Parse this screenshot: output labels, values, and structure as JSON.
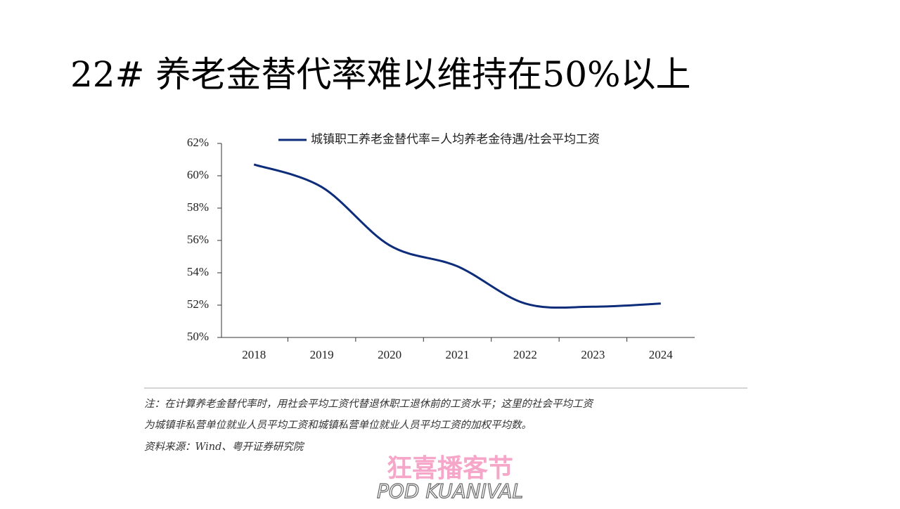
{
  "chart_data": {
    "type": "line",
    "title": "22# 养老金替代率难以维持在50%以上",
    "categories": [
      "2018",
      "2019",
      "2020",
      "2021",
      "2022",
      "2023",
      "2024"
    ],
    "series": [
      {
        "name": "城镇职工养老金替代率=人均养老金待遇/社会平均工资",
        "color": "#0d2d7a",
        "values": [
          60.7,
          59.3,
          55.7,
          54.4,
          52.1,
          51.9,
          52.1
        ]
      }
    ],
    "ylim": [
      50,
      62
    ],
    "yticks": [
      {
        "value": 50,
        "label": "50%"
      },
      {
        "value": 52,
        "label": "52%"
      },
      {
        "value": 54,
        "label": "54%"
      },
      {
        "value": 56,
        "label": "56%"
      },
      {
        "value": 58,
        "label": "58%"
      },
      {
        "value": 60,
        "label": "60%"
      },
      {
        "value": 62,
        "label": "62%"
      }
    ],
    "legend": "top",
    "notes": [
      "注：在计算养老金替代率时，用社会平均工资代替退休职工退休前的工资水平；这里的社会平均工资",
      "为城镇非私营单位就业人员平均工资和城镇私营单位就业人员平均工资的加权平均数。"
    ],
    "source": "资料来源：Wind、粤开证券研究院",
    "watermark": [
      "狂喜播客节",
      "POD KUANIVAL"
    ]
  }
}
